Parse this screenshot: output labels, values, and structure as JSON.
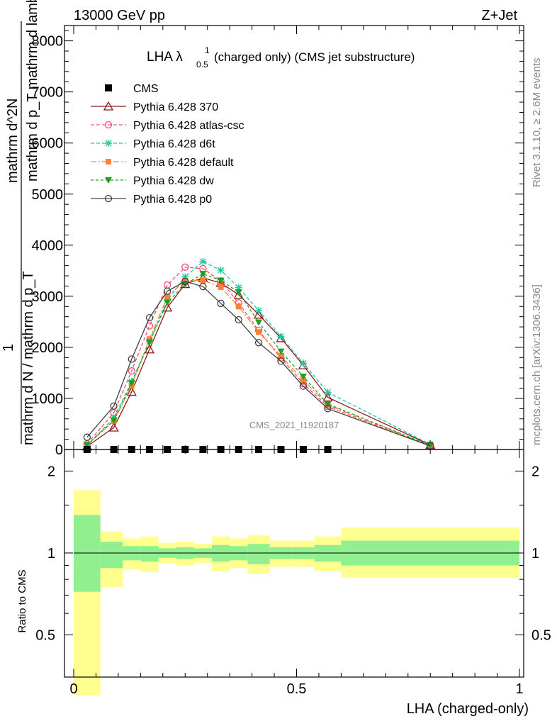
{
  "header": {
    "left": "13000 GeV pp",
    "right": "Z+Jet"
  },
  "plot_title": {
    "main": "LHA λ",
    "sup": "1",
    "sub": "0.5",
    "rest": "(charged only) (CMS jet substructure)"
  },
  "side_labels": {
    "rivet": "Rivet 3.1.10, ≥ 2.6M events",
    "mcplots": "mcplots.cern.ch [arXiv:1306.3436]"
  },
  "watermark": "CMS_2021_I1920187",
  "ylabel_main": {
    "num": "mathrm d^2N",
    "den": "mathrm d p_T mathrm d lambda",
    "pre": "1",
    "pre_den": "mathrm d N / mathrm d p_T"
  },
  "ylabel_ratio": "Ratio to CMS",
  "xlabel": "LHA (charged-only)",
  "colors": {
    "p370": "#8b1a1a",
    "atlas": "#f0506e",
    "d6t": "#20c8a0",
    "default": "#ff8030",
    "dw": "#20a020",
    "p0": "#404040",
    "band_inner": "#90f090",
    "band_outer": "#ffff90"
  },
  "chart_data": [
    {
      "type": "line",
      "ylim": [
        0,
        8300
      ],
      "xlim": [
        -0.02,
        1.0
      ],
      "yticks": [
        "0",
        "1000",
        "2000",
        "3000",
        "4000",
        "5000",
        "6000",
        "7000",
        "8000"
      ],
      "ytick_values": [
        0,
        1000,
        2000,
        3000,
        4000,
        5000,
        6000,
        7000,
        8000
      ],
      "x": [
        0.03,
        0.09,
        0.13,
        0.17,
        0.21,
        0.25,
        0.29,
        0.33,
        0.37,
        0.415,
        0.465,
        0.515,
        0.57,
        0.8
      ],
      "cms": {
        "name": "CMS",
        "x": [
          0.03,
          0.09,
          0.13,
          0.17,
          0.21,
          0.25,
          0.29,
          0.33,
          0.37,
          0.415,
          0.465,
          0.515,
          0.57
        ],
        "values": [
          0,
          0,
          0,
          0,
          0,
          0,
          0,
          0,
          0,
          0,
          0,
          0,
          0
        ]
      },
      "series": [
        {
          "name": "Pythia 6.428 370",
          "key": "p370",
          "marker": "tri-open",
          "dash": "",
          "values": [
            60,
            430,
            1130,
            1960,
            2780,
            3240,
            3360,
            3260,
            3030,
            2640,
            2180,
            1650,
            1020,
            90
          ]
        },
        {
          "name": "Pythia 6.428 atlas-csc",
          "key": "atlas",
          "marker": "circle-open",
          "dash": "5,3",
          "values": [
            110,
            720,
            1540,
            2420,
            3220,
            3570,
            3540,
            3300,
            2870,
            2330,
            1790,
            1290,
            840,
            70
          ]
        },
        {
          "name": "Pythia 6.428 d6t",
          "key": "d6t",
          "marker": "star",
          "dash": "5,3",
          "values": [
            80,
            620,
            1330,
            2120,
            2920,
            3380,
            3680,
            3510,
            3170,
            2720,
            2210,
            1690,
            1120,
            100
          ]
        },
        {
          "name": "Pythia 6.428 default",
          "key": "default",
          "marker": "square",
          "dash": "8,3,2,3",
          "values": [
            90,
            560,
            1250,
            2160,
            2990,
            3310,
            3310,
            3180,
            2800,
            2300,
            1830,
            1360,
            870,
            80
          ]
        },
        {
          "name": "Pythia 6.428 dw",
          "key": "dw",
          "marker": "tri-down",
          "dash": "4,3",
          "values": [
            90,
            570,
            1300,
            2100,
            2880,
            3230,
            3440,
            3310,
            3080,
            2490,
            1920,
            1430,
            890,
            80
          ]
        },
        {
          "name": "Pythia 6.428 p0",
          "key": "p0",
          "marker": "circle-open",
          "dash": "",
          "values": [
            240,
            850,
            1770,
            2580,
            3100,
            3290,
            3190,
            2860,
            2540,
            2090,
            1730,
            1240,
            800,
            70
          ]
        }
      ]
    },
    {
      "type": "area",
      "ylabel": "Ratio to CMS",
      "xlabel": "LHA (charged-only)",
      "xlim": [
        -0.02,
        1.0
      ],
      "xticks": [
        "0",
        "0.5",
        "1"
      ],
      "xtick_values": [
        0,
        0.5,
        1
      ],
      "yticks": [
        "0.5",
        "1",
        "2"
      ],
      "ytick_values": [
        0.5,
        1,
        2
      ],
      "ylim": [
        0.35,
        2.4
      ],
      "log_y": true,
      "bins": [
        0.0,
        0.06,
        0.11,
        0.15,
        0.19,
        0.23,
        0.27,
        0.31,
        0.35,
        0.39,
        0.44,
        0.49,
        0.54,
        0.6,
        1.0
      ],
      "outer_hi": [
        1.7,
        1.2,
        1.13,
        1.15,
        1.09,
        1.1,
        1.08,
        1.15,
        1.13,
        1.16,
        1.11,
        1.11,
        1.15,
        1.24
      ],
      "outer_lo": [
        0.3,
        0.75,
        0.87,
        0.85,
        0.92,
        0.9,
        0.92,
        0.86,
        0.88,
        0.84,
        0.89,
        0.89,
        0.86,
        0.81
      ],
      "inner_hi": [
        1.38,
        1.1,
        1.06,
        1.06,
        1.04,
        1.05,
        1.04,
        1.07,
        1.06,
        1.08,
        1.05,
        1.05,
        1.07,
        1.11
      ],
      "inner_lo": [
        0.72,
        0.88,
        0.94,
        0.93,
        0.96,
        0.95,
        0.96,
        0.93,
        0.94,
        0.91,
        0.95,
        0.95,
        0.93,
        0.9
      ]
    }
  ]
}
